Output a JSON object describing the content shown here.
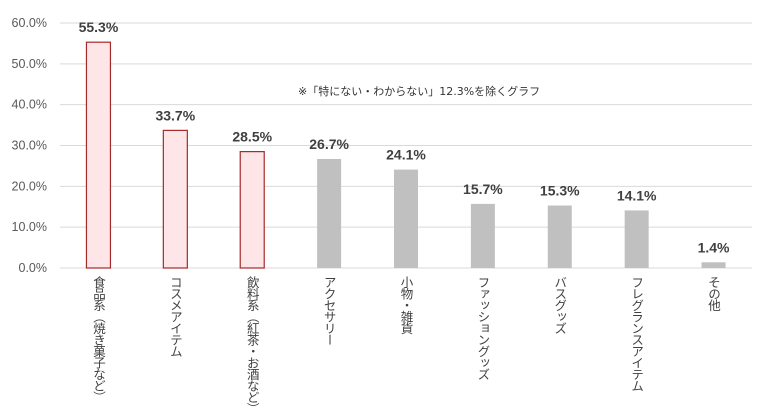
{
  "chart_data": {
    "type": "bar",
    "categories": [
      "食品系（焼き菓子など）",
      "コスメアイテム",
      "飲料系（紅茶・お酒など）",
      "アクセサリー",
      "小物・雑貨",
      "ファッショングッズ",
      "バスグッズ",
      "フレグランスアイテム",
      "その他"
    ],
    "values": [
      55.3,
      33.7,
      28.5,
      26.7,
      24.1,
      15.7,
      15.3,
      14.1,
      1.4
    ],
    "value_labels": [
      "55.3%",
      "33.7%",
      "28.5%",
      "26.7%",
      "24.1%",
      "15.7%",
      "15.3%",
      "14.1%",
      "1.4%"
    ],
    "highlighted": [
      true,
      true,
      true,
      false,
      false,
      false,
      false,
      false,
      false
    ],
    "ylim": [
      0,
      60
    ],
    "y_ticks": [
      "0.0%",
      "10.0%",
      "20.0%",
      "30.0%",
      "40.0%",
      "50.0%",
      "60.0%"
    ],
    "annotation": "※「特にない・わからない」12.3%を除くグラフ",
    "grid": true,
    "colors": {
      "highlight_fill": "#fde5e8",
      "highlight_stroke": "#a52a2a",
      "normal_fill": "#c0c0c0",
      "grid": "#d9d9d9",
      "axis": "#bfbfbf"
    }
  }
}
